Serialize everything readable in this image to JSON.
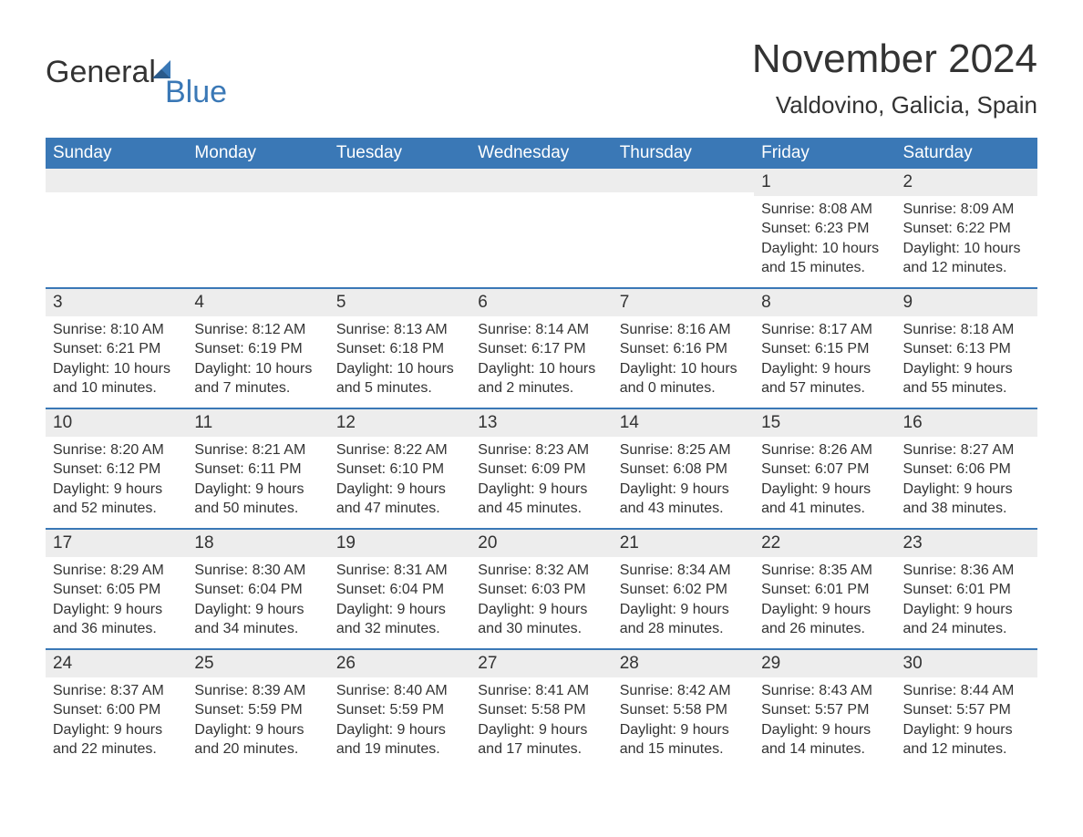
{
  "logo": {
    "text1": "General",
    "text2": "Blue"
  },
  "title": "November 2024",
  "location": "Valdovino, Galicia, Spain",
  "colors": {
    "header_bg": "#3a78b6",
    "header_text": "#ffffff",
    "daynum_bg": "#ededed",
    "border": "#3a78b6",
    "text": "#333333",
    "background": "#ffffff"
  },
  "dayheaders": [
    "Sunday",
    "Monday",
    "Tuesday",
    "Wednesday",
    "Thursday",
    "Friday",
    "Saturday"
  ],
  "weeks": [
    [
      {
        "daynum": "",
        "sunrise": "",
        "sunset": "",
        "daylight1": "",
        "daylight2": ""
      },
      {
        "daynum": "",
        "sunrise": "",
        "sunset": "",
        "daylight1": "",
        "daylight2": ""
      },
      {
        "daynum": "",
        "sunrise": "",
        "sunset": "",
        "daylight1": "",
        "daylight2": ""
      },
      {
        "daynum": "",
        "sunrise": "",
        "sunset": "",
        "daylight1": "",
        "daylight2": ""
      },
      {
        "daynum": "",
        "sunrise": "",
        "sunset": "",
        "daylight1": "",
        "daylight2": ""
      },
      {
        "daynum": "1",
        "sunrise": "Sunrise: 8:08 AM",
        "sunset": "Sunset: 6:23 PM",
        "daylight1": "Daylight: 10 hours",
        "daylight2": "and 15 minutes."
      },
      {
        "daynum": "2",
        "sunrise": "Sunrise: 8:09 AM",
        "sunset": "Sunset: 6:22 PM",
        "daylight1": "Daylight: 10 hours",
        "daylight2": "and 12 minutes."
      }
    ],
    [
      {
        "daynum": "3",
        "sunrise": "Sunrise: 8:10 AM",
        "sunset": "Sunset: 6:21 PM",
        "daylight1": "Daylight: 10 hours",
        "daylight2": "and 10 minutes."
      },
      {
        "daynum": "4",
        "sunrise": "Sunrise: 8:12 AM",
        "sunset": "Sunset: 6:19 PM",
        "daylight1": "Daylight: 10 hours",
        "daylight2": "and 7 minutes."
      },
      {
        "daynum": "5",
        "sunrise": "Sunrise: 8:13 AM",
        "sunset": "Sunset: 6:18 PM",
        "daylight1": "Daylight: 10 hours",
        "daylight2": "and 5 minutes."
      },
      {
        "daynum": "6",
        "sunrise": "Sunrise: 8:14 AM",
        "sunset": "Sunset: 6:17 PM",
        "daylight1": "Daylight: 10 hours",
        "daylight2": "and 2 minutes."
      },
      {
        "daynum": "7",
        "sunrise": "Sunrise: 8:16 AM",
        "sunset": "Sunset: 6:16 PM",
        "daylight1": "Daylight: 10 hours",
        "daylight2": "and 0 minutes."
      },
      {
        "daynum": "8",
        "sunrise": "Sunrise: 8:17 AM",
        "sunset": "Sunset: 6:15 PM",
        "daylight1": "Daylight: 9 hours",
        "daylight2": "and 57 minutes."
      },
      {
        "daynum": "9",
        "sunrise": "Sunrise: 8:18 AM",
        "sunset": "Sunset: 6:13 PM",
        "daylight1": "Daylight: 9 hours",
        "daylight2": "and 55 minutes."
      }
    ],
    [
      {
        "daynum": "10",
        "sunrise": "Sunrise: 8:20 AM",
        "sunset": "Sunset: 6:12 PM",
        "daylight1": "Daylight: 9 hours",
        "daylight2": "and 52 minutes."
      },
      {
        "daynum": "11",
        "sunrise": "Sunrise: 8:21 AM",
        "sunset": "Sunset: 6:11 PM",
        "daylight1": "Daylight: 9 hours",
        "daylight2": "and 50 minutes."
      },
      {
        "daynum": "12",
        "sunrise": "Sunrise: 8:22 AM",
        "sunset": "Sunset: 6:10 PM",
        "daylight1": "Daylight: 9 hours",
        "daylight2": "and 47 minutes."
      },
      {
        "daynum": "13",
        "sunrise": "Sunrise: 8:23 AM",
        "sunset": "Sunset: 6:09 PM",
        "daylight1": "Daylight: 9 hours",
        "daylight2": "and 45 minutes."
      },
      {
        "daynum": "14",
        "sunrise": "Sunrise: 8:25 AM",
        "sunset": "Sunset: 6:08 PM",
        "daylight1": "Daylight: 9 hours",
        "daylight2": "and 43 minutes."
      },
      {
        "daynum": "15",
        "sunrise": "Sunrise: 8:26 AM",
        "sunset": "Sunset: 6:07 PM",
        "daylight1": "Daylight: 9 hours",
        "daylight2": "and 41 minutes."
      },
      {
        "daynum": "16",
        "sunrise": "Sunrise: 8:27 AM",
        "sunset": "Sunset: 6:06 PM",
        "daylight1": "Daylight: 9 hours",
        "daylight2": "and 38 minutes."
      }
    ],
    [
      {
        "daynum": "17",
        "sunrise": "Sunrise: 8:29 AM",
        "sunset": "Sunset: 6:05 PM",
        "daylight1": "Daylight: 9 hours",
        "daylight2": "and 36 minutes."
      },
      {
        "daynum": "18",
        "sunrise": "Sunrise: 8:30 AM",
        "sunset": "Sunset: 6:04 PM",
        "daylight1": "Daylight: 9 hours",
        "daylight2": "and 34 minutes."
      },
      {
        "daynum": "19",
        "sunrise": "Sunrise: 8:31 AM",
        "sunset": "Sunset: 6:04 PM",
        "daylight1": "Daylight: 9 hours",
        "daylight2": "and 32 minutes."
      },
      {
        "daynum": "20",
        "sunrise": "Sunrise: 8:32 AM",
        "sunset": "Sunset: 6:03 PM",
        "daylight1": "Daylight: 9 hours",
        "daylight2": "and 30 minutes."
      },
      {
        "daynum": "21",
        "sunrise": "Sunrise: 8:34 AM",
        "sunset": "Sunset: 6:02 PM",
        "daylight1": "Daylight: 9 hours",
        "daylight2": "and 28 minutes."
      },
      {
        "daynum": "22",
        "sunrise": "Sunrise: 8:35 AM",
        "sunset": "Sunset: 6:01 PM",
        "daylight1": "Daylight: 9 hours",
        "daylight2": "and 26 minutes."
      },
      {
        "daynum": "23",
        "sunrise": "Sunrise: 8:36 AM",
        "sunset": "Sunset: 6:01 PM",
        "daylight1": "Daylight: 9 hours",
        "daylight2": "and 24 minutes."
      }
    ],
    [
      {
        "daynum": "24",
        "sunrise": "Sunrise: 8:37 AM",
        "sunset": "Sunset: 6:00 PM",
        "daylight1": "Daylight: 9 hours",
        "daylight2": "and 22 minutes."
      },
      {
        "daynum": "25",
        "sunrise": "Sunrise: 8:39 AM",
        "sunset": "Sunset: 5:59 PM",
        "daylight1": "Daylight: 9 hours",
        "daylight2": "and 20 minutes."
      },
      {
        "daynum": "26",
        "sunrise": "Sunrise: 8:40 AM",
        "sunset": "Sunset: 5:59 PM",
        "daylight1": "Daylight: 9 hours",
        "daylight2": "and 19 minutes."
      },
      {
        "daynum": "27",
        "sunrise": "Sunrise: 8:41 AM",
        "sunset": "Sunset: 5:58 PM",
        "daylight1": "Daylight: 9 hours",
        "daylight2": "and 17 minutes."
      },
      {
        "daynum": "28",
        "sunrise": "Sunrise: 8:42 AM",
        "sunset": "Sunset: 5:58 PM",
        "daylight1": "Daylight: 9 hours",
        "daylight2": "and 15 minutes."
      },
      {
        "daynum": "29",
        "sunrise": "Sunrise: 8:43 AM",
        "sunset": "Sunset: 5:57 PM",
        "daylight1": "Daylight: 9 hours",
        "daylight2": "and 14 minutes."
      },
      {
        "daynum": "30",
        "sunrise": "Sunrise: 8:44 AM",
        "sunset": "Sunset: 5:57 PM",
        "daylight1": "Daylight: 9 hours",
        "daylight2": "and 12 minutes."
      }
    ]
  ]
}
